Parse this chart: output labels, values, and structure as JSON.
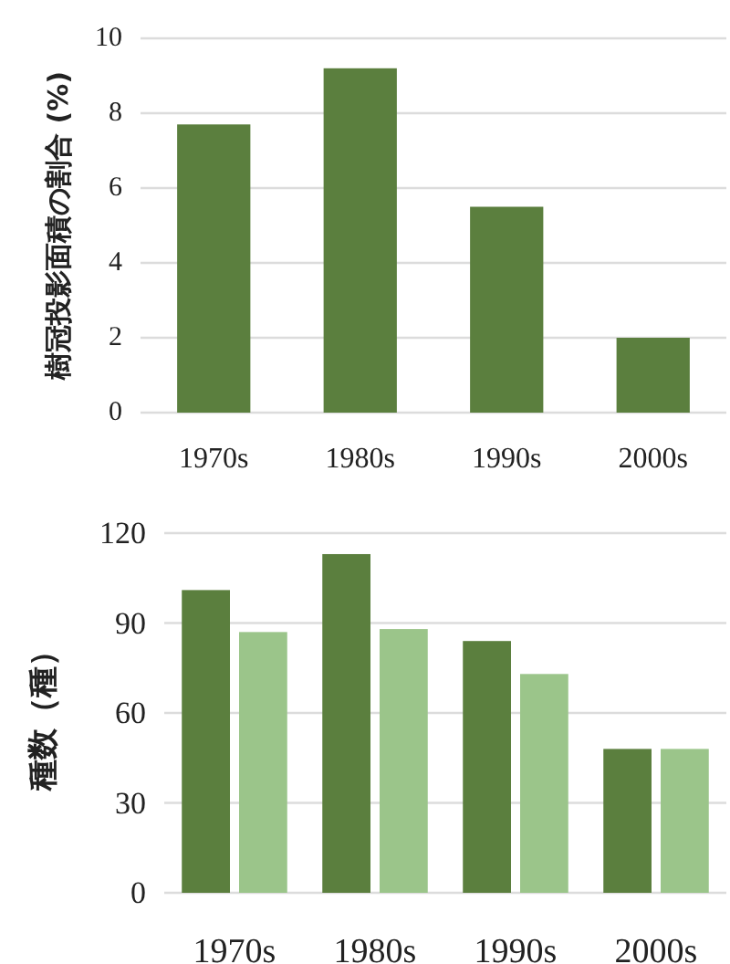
{
  "chart_data": [
    {
      "type": "bar",
      "ylabel": "樹冠投影面積の割合 (%)",
      "categories": [
        "1970s",
        "1980s",
        "1990s",
        "2000s"
      ],
      "series": [
        {
          "color": "#5b7f3e",
          "values": [
            7.7,
            9.2,
            5.5,
            2.0
          ]
        }
      ],
      "ylim": [
        0,
        10
      ],
      "yticks": [
        0,
        2,
        4,
        6,
        8,
        10
      ],
      "grid": "y"
    },
    {
      "type": "bar",
      "ylabel": "種数（種）",
      "categories": [
        "1970s",
        "1980s",
        "1990s",
        "2000s"
      ],
      "series": [
        {
          "color": "#5b7f3e",
          "values": [
            101,
            113,
            84,
            48
          ]
        },
        {
          "color": "#9bc58a",
          "values": [
            87,
            88,
            73,
            48
          ]
        }
      ],
      "ylim": [
        0,
        120
      ],
      "yticks": [
        0,
        30,
        60,
        90,
        120
      ],
      "grid": "y"
    }
  ]
}
